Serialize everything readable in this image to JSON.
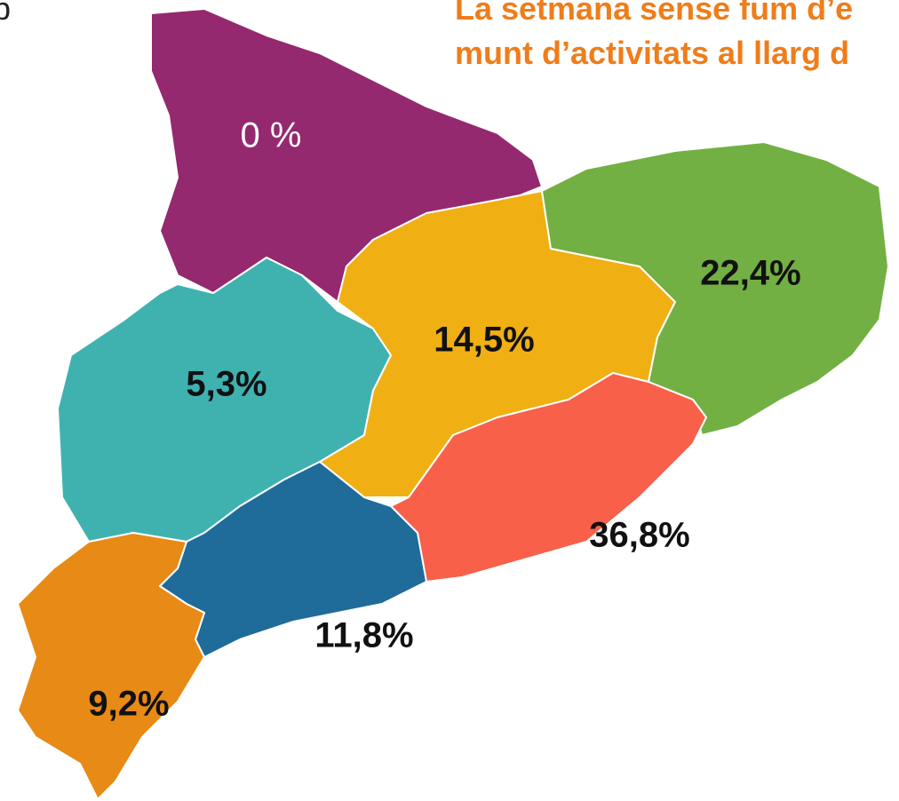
{
  "corner_text": "b",
  "title_lines": [
    "La setmana sense fum d’e",
    "munt d’activitats al llarg d"
  ],
  "regions": [
    {
      "value": 0,
      "value_label": "0 %",
      "color": "#94296f"
    },
    {
      "value": 5.3,
      "value_label": "5,3%",
      "color": "#3fb2b0"
    },
    {
      "value": 14.5,
      "value_label": "14,5%",
      "color": "#f0b014"
    },
    {
      "value": 22.4,
      "value_label": "22,4%",
      "color": "#72b043"
    },
    {
      "value": 36.8,
      "value_label": "36,8%",
      "color": "#f8604a"
    },
    {
      "value": 11.8,
      "value_label": "11,8%",
      "color": "#1f6b9a"
    },
    {
      "value": 9.2,
      "value_label": "9,2%",
      "color": "#e88a16"
    }
  ]
}
